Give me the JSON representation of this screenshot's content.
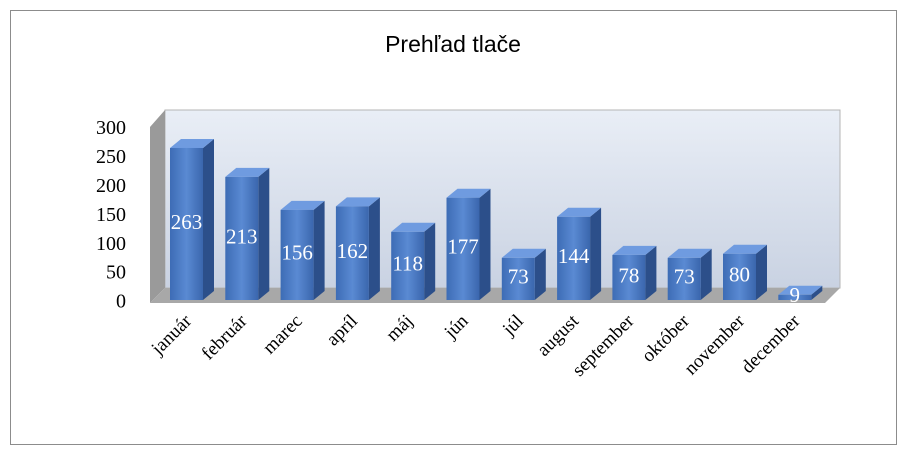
{
  "chart_data": {
    "type": "bar3d",
    "title": "Prehľad tlače",
    "categories": [
      "január",
      "február",
      "marec",
      "apríl",
      "máj",
      "jún",
      "júl",
      "august",
      "september",
      "október",
      "november",
      "december"
    ],
    "values": [
      263,
      213,
      156,
      162,
      118,
      177,
      73,
      144,
      78,
      73,
      80,
      9
    ],
    "color": "#4a7bc4",
    "ylim": [
      0,
      300
    ],
    "yticks": [
      0,
      50,
      100,
      150,
      200,
      250,
      300
    ]
  }
}
